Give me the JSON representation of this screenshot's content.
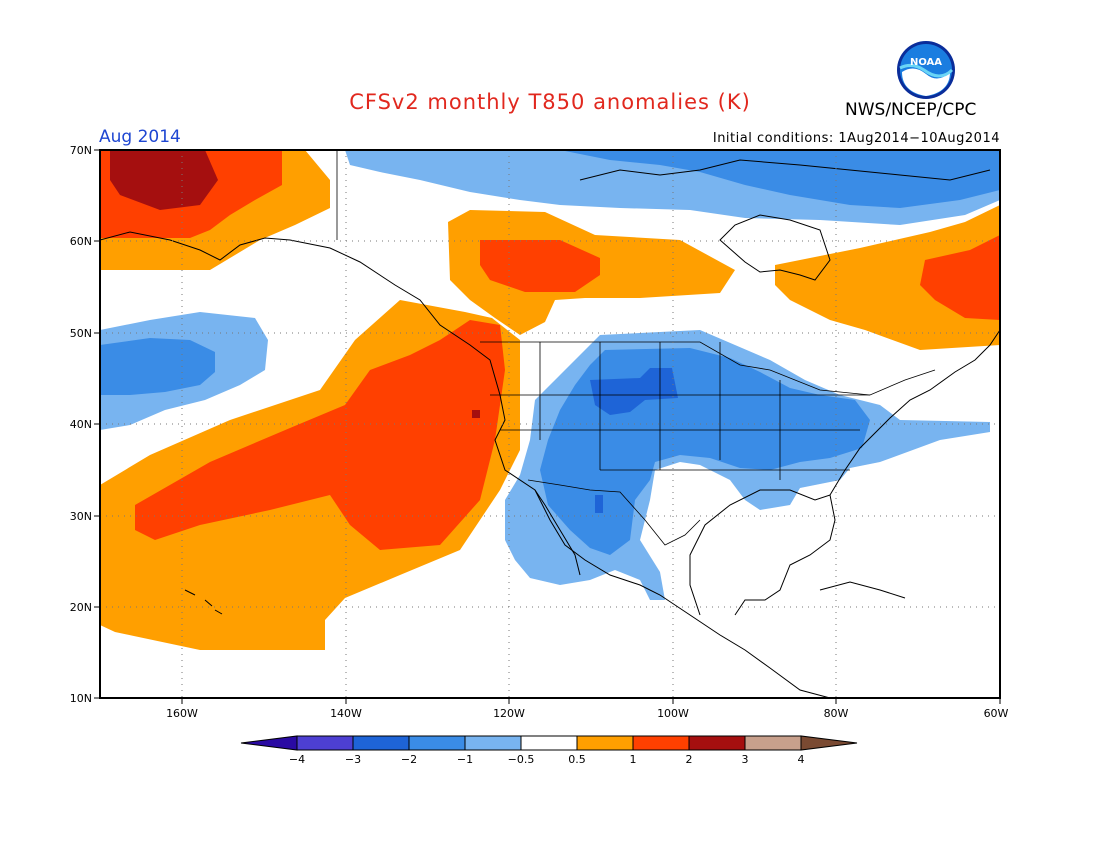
{
  "title": "CFSv2 monthly T850 anomalies (K)",
  "agency": "NWS/NCEP/CPC",
  "period": "Aug 2014",
  "initial_conditions": "Initial conditions: 1Aug2014−10Aug2014",
  "logo_text": "NOAA",
  "colors": {
    "title": "#e1281e",
    "period": "#1e46d2",
    "border": "#000000"
  },
  "map": {
    "region": "North America / NE Pacific",
    "lat_range": [
      10,
      70
    ],
    "lon_range": [
      -170,
      -60
    ],
    "lat_ticks": [
      "70N",
      "60N",
      "50N",
      "40N",
      "30N",
      "20N",
      "10N"
    ],
    "lon_ticks": [
      "160W",
      "140W",
      "120W",
      "100W",
      "80W",
      "60W"
    ],
    "grid": "dotted",
    "features": [
      {
        "name": "warm anomaly, far NW (Bering)",
        "level": "2 to 3"
      },
      {
        "name": "warm band, NE Pacific",
        "level": "1 to 2"
      },
      {
        "name": "warm anomaly, west coast",
        "level": "1 to 2"
      },
      {
        "name": "cold anomaly, central pacific",
        "level": "-1 to -0.5"
      },
      {
        "name": "cold anomaly, interior US",
        "level": "-2 to -1"
      },
      {
        "name": "cold anomaly, arctic",
        "level": "-2 to -0.5"
      },
      {
        "name": "warm anomaly, NW Canada",
        "level": "0.5 to 2"
      },
      {
        "name": "warm anomaly, NE Canada",
        "level": "0.5 to 2"
      }
    ]
  },
  "colorbar": {
    "labels": [
      "−4",
      "−3",
      "−2",
      "−1",
      "−0.5",
      "0.5",
      "1",
      "2",
      "3",
      "4"
    ],
    "colors": [
      "#2a0aa3",
      "#4d3fd2",
      "#1e64d7",
      "#3a8ce6",
      "#78b4f0",
      "#ffffff",
      "#ff9f00",
      "#ff4000",
      "#a50f0f",
      "#c8a08c",
      "#7a4a32"
    ]
  }
}
